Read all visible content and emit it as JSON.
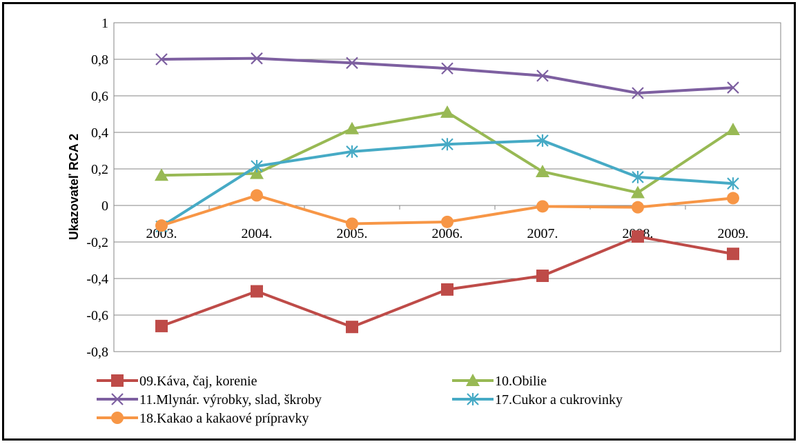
{
  "chart_data": {
    "type": "line",
    "title": "",
    "xlabel": "",
    "ylabel": "Ukazovateľ RCA 2",
    "categories": [
      "2003.",
      "2004.",
      "2005.",
      "2006.",
      "2007.",
      "2008.",
      "2009."
    ],
    "ylim": [
      -0.8,
      1
    ],
    "yticks": [
      1,
      0.8,
      0.6,
      0.4,
      0.2,
      0,
      -0.2,
      -0.4,
      -0.6,
      -0.8
    ],
    "ytick_labels": [
      "1",
      "0,8",
      "0,6",
      "0,4",
      "0,2",
      "0",
      "-0,2",
      "-0,4",
      "-0,6",
      "-0,8"
    ],
    "grid": true,
    "legend_position": "bottom",
    "series": [
      {
        "name": "09.Káva, čaj, korenie",
        "color": "#BE4B48",
        "marker": "square",
        "values": [
          -0.66,
          -0.47,
          -0.665,
          -0.46,
          -0.385,
          -0.17,
          -0.265
        ]
      },
      {
        "name": "10.Obilie",
        "color": "#98B954",
        "marker": "triangle",
        "values": [
          0.165,
          0.175,
          0.42,
          0.51,
          0.185,
          0.07,
          0.415
        ]
      },
      {
        "name": "11.Mlynár. výrobky, slad, škroby",
        "color": "#7D5FA0",
        "marker": "x",
        "values": [
          0.8,
          0.805,
          0.78,
          0.75,
          0.71,
          0.615,
          0.645
        ]
      },
      {
        "name": "17.Cukor a cukrovinky",
        "color": "#46AAC5",
        "marker": "star",
        "values": [
          -0.115,
          0.215,
          0.295,
          0.335,
          0.355,
          0.155,
          0.12
        ]
      },
      {
        "name": "18.Kakao a kakaové prípravky",
        "color": "#F79646",
        "marker": "circle",
        "values": [
          -0.11,
          0.055,
          -0.1,
          -0.09,
          -0.005,
          -0.01,
          0.04
        ]
      }
    ]
  }
}
